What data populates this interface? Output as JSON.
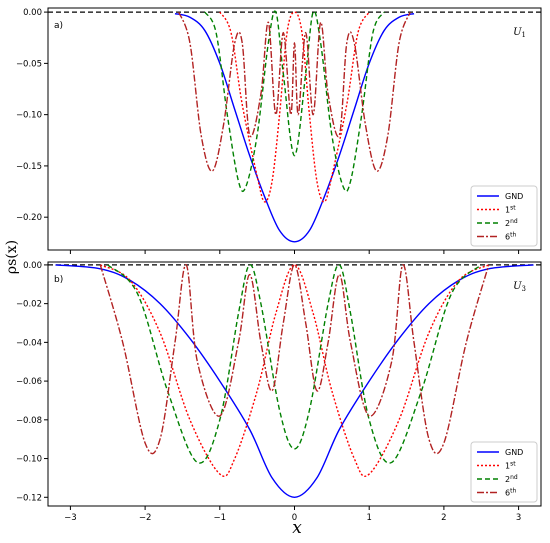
{
  "chart_data": {
    "xlabel": "x",
    "ylabel": "ρs(x)",
    "x_ticks": [
      -3,
      -2,
      -1,
      0,
      1,
      2,
      3
    ],
    "xlim": [
      -3.3,
      3.3
    ],
    "panels": [
      {
        "type": "line",
        "tag": "a)",
        "u_label": "U",
        "u_sub": "1",
        "ylim": [
          -0.232,
          0.004
        ],
        "y_ticks": [
          0.0,
          -0.05,
          -0.1,
          -0.15,
          -0.2
        ],
        "y_tick_labels": [
          "0.00",
          "−0.05",
          "−0.10",
          "−0.15",
          "−0.20"
        ],
        "legend_position": "bottom-right",
        "series": [
          {
            "name": "GND",
            "sup": "",
            "color": "#0000ff",
            "dash": "",
            "points": [
              [
                -1.6,
                -0.0015
              ],
              [
                -1.4,
                -0.005
              ],
              [
                -1.2,
                -0.018
              ],
              [
                -1.0,
                -0.05
              ],
              [
                -0.8,
                -0.095
              ],
              [
                -0.6,
                -0.14
              ],
              [
                -0.4,
                -0.18
              ],
              [
                -0.2,
                -0.213
              ],
              [
                0,
                -0.224
              ],
              [
                0.2,
                -0.213
              ],
              [
                0.4,
                -0.18
              ],
              [
                0.6,
                -0.14
              ],
              [
                0.8,
                -0.095
              ],
              [
                1.0,
                -0.05
              ],
              [
                1.2,
                -0.018
              ],
              [
                1.4,
                -0.005
              ],
              [
                1.6,
                -0.0015
              ]
            ]
          },
          {
            "name": "1",
            "sup": "st",
            "color": "#ff0000",
            "dash": "2,2",
            "points": [
              [
                -1.0,
                0
              ],
              [
                -0.85,
                -0.02
              ],
              [
                -0.7,
                -0.09
              ],
              [
                -0.5,
                -0.16
              ],
              [
                -0.4,
                -0.185
              ],
              [
                -0.3,
                -0.165
              ],
              [
                -0.2,
                -0.1
              ],
              [
                -0.1,
                -0.02
              ],
              [
                0,
                0
              ],
              [
                0.1,
                -0.02
              ],
              [
                0.2,
                -0.1
              ],
              [
                0.3,
                -0.165
              ],
              [
                0.4,
                -0.185
              ],
              [
                0.5,
                -0.16
              ],
              [
                0.7,
                -0.09
              ],
              [
                0.85,
                -0.02
              ],
              [
                1.0,
                0
              ]
            ]
          },
          {
            "name": "2",
            "sup": "nd",
            "color": "#008000",
            "dash": "5,3",
            "points": [
              [
                -1.2,
                0
              ],
              [
                -1.05,
                -0.02
              ],
              [
                -0.9,
                -0.1
              ],
              [
                -0.75,
                -0.165
              ],
              [
                -0.65,
                -0.17
              ],
              [
                -0.5,
                -0.12
              ],
              [
                -0.35,
                -0.03
              ],
              [
                -0.25,
                0
              ],
              [
                -0.15,
                -0.06
              ],
              [
                0,
                -0.14
              ],
              [
                0.15,
                -0.06
              ],
              [
                0.25,
                0
              ],
              [
                0.35,
                -0.03
              ],
              [
                0.5,
                -0.12
              ],
              [
                0.65,
                -0.17
              ],
              [
                0.75,
                -0.165
              ],
              [
                0.9,
                -0.1
              ],
              [
                1.05,
                -0.02
              ],
              [
                1.2,
                0
              ]
            ]
          },
          {
            "name": "6",
            "sup": "th",
            "color": "#b22222",
            "dash": "7,2,2,2",
            "points": [
              [
                -1.55,
                0
              ],
              [
                -1.4,
                -0.03
              ],
              [
                -1.25,
                -0.12
              ],
              [
                -1.1,
                -0.155
              ],
              [
                -0.95,
                -0.11
              ],
              [
                -0.8,
                -0.03
              ],
              [
                -0.7,
                -0.03
              ],
              [
                -0.6,
                -0.12
              ],
              [
                -0.45,
                -0.08
              ],
              [
                -0.35,
                -0.01
              ],
              [
                -0.25,
                -0.1
              ],
              [
                -0.15,
                -0.02
              ],
              [
                -0.05,
                -0.1
              ],
              [
                0,
                -0.03
              ],
              [
                0.05,
                -0.1
              ],
              [
                0.15,
                -0.02
              ],
              [
                0.25,
                -0.1
              ],
              [
                0.35,
                -0.01
              ],
              [
                0.45,
                -0.08
              ],
              [
                0.6,
                -0.12
              ],
              [
                0.7,
                -0.03
              ],
              [
                0.8,
                -0.03
              ],
              [
                0.95,
                -0.11
              ],
              [
                1.1,
                -0.155
              ],
              [
                1.25,
                -0.12
              ],
              [
                1.4,
                -0.03
              ],
              [
                1.55,
                0
              ]
            ]
          }
        ]
      },
      {
        "type": "line",
        "tag": "b)",
        "u_label": "U",
        "u_sub": "3",
        "ylim": [
          -0.1245,
          0.0015
        ],
        "y_ticks": [
          0.0,
          -0.02,
          -0.04,
          -0.06,
          -0.08,
          -0.1,
          -0.12
        ],
        "y_tick_labels": [
          "0.00",
          "−0.02",
          "−0.04",
          "−0.06",
          "−0.08",
          "−0.10",
          "−0.12"
        ],
        "legend_position": "bottom-right",
        "series": [
          {
            "name": "GND",
            "sup": "",
            "color": "#0000ff",
            "dash": "",
            "points": [
              [
                -3.2,
                0
              ],
              [
                -2.6,
                -0.002
              ],
              [
                -2.2,
                -0.008
              ],
              [
                -1.8,
                -0.02
              ],
              [
                -1.4,
                -0.038
              ],
              [
                -1.0,
                -0.06
              ],
              [
                -0.6,
                -0.085
              ],
              [
                -0.3,
                -0.11
              ],
              [
                0,
                -0.12
              ],
              [
                0.3,
                -0.11
              ],
              [
                0.6,
                -0.085
              ],
              [
                1.0,
                -0.06
              ],
              [
                1.4,
                -0.038
              ],
              [
                1.8,
                -0.02
              ],
              [
                2.2,
                -0.008
              ],
              [
                2.6,
                -0.002
              ],
              [
                3.2,
                0
              ]
            ]
          },
          {
            "name": "1",
            "sup": "st",
            "color": "#ff0000",
            "dash": "2,2",
            "points": [
              [
                -2.6,
                0
              ],
              [
                -2.2,
                -0.008
              ],
              [
                -1.8,
                -0.035
              ],
              [
                -1.4,
                -0.08
              ],
              [
                -1.0,
                -0.108
              ],
              [
                -0.8,
                -0.1
              ],
              [
                -0.5,
                -0.065
              ],
              [
                -0.25,
                -0.025
              ],
              [
                0,
                0
              ],
              [
                0.25,
                -0.025
              ],
              [
                0.5,
                -0.065
              ],
              [
                0.8,
                -0.1
              ],
              [
                1.0,
                -0.108
              ],
              [
                1.4,
                -0.08
              ],
              [
                1.8,
                -0.035
              ],
              [
                2.2,
                -0.008
              ],
              [
                2.6,
                0
              ]
            ]
          },
          {
            "name": "2",
            "sup": "nd",
            "color": "#008000",
            "dash": "5,3",
            "points": [
              [
                -2.5,
                0
              ],
              [
                -2.1,
                -0.015
              ],
              [
                -1.7,
                -0.065
              ],
              [
                -1.3,
                -0.102
              ],
              [
                -1.0,
                -0.08
              ],
              [
                -0.75,
                -0.025
              ],
              [
                -0.6,
                0
              ],
              [
                -0.45,
                -0.02
              ],
              [
                -0.2,
                -0.075
              ],
              [
                0,
                -0.095
              ],
              [
                0.2,
                -0.075
              ],
              [
                0.45,
                -0.02
              ],
              [
                0.6,
                0
              ],
              [
                0.75,
                -0.025
              ],
              [
                1.0,
                -0.08
              ],
              [
                1.3,
                -0.102
              ],
              [
                1.7,
                -0.065
              ],
              [
                2.1,
                -0.015
              ],
              [
                2.5,
                0
              ]
            ]
          },
          {
            "name": "6",
            "sup": "th",
            "color": "#b22222",
            "dash": "7,2,2,2",
            "points": [
              [
                -2.6,
                0
              ],
              [
                -2.3,
                -0.04
              ],
              [
                -2.0,
                -0.092
              ],
              [
                -1.8,
                -0.09
              ],
              [
                -1.6,
                -0.04
              ],
              [
                -1.45,
                0
              ],
              [
                -1.3,
                -0.05
              ],
              [
                -1.0,
                -0.078
              ],
              [
                -0.75,
                -0.04
              ],
              [
                -0.6,
                -0.005
              ],
              [
                -0.45,
                -0.04
              ],
              [
                -0.3,
                -0.065
              ],
              [
                -0.15,
                -0.03
              ],
              [
                0,
                0
              ],
              [
                0.15,
                -0.03
              ],
              [
                0.3,
                -0.065
              ],
              [
                0.45,
                -0.04
              ],
              [
                0.6,
                -0.005
              ],
              [
                0.75,
                -0.04
              ],
              [
                1.0,
                -0.078
              ],
              [
                1.3,
                -0.05
              ],
              [
                1.45,
                0
              ],
              [
                1.6,
                -0.04
              ],
              [
                1.8,
                -0.09
              ],
              [
                2.0,
                -0.092
              ],
              [
                2.3,
                -0.04
              ],
              [
                2.6,
                0
              ]
            ]
          }
        ]
      }
    ]
  }
}
